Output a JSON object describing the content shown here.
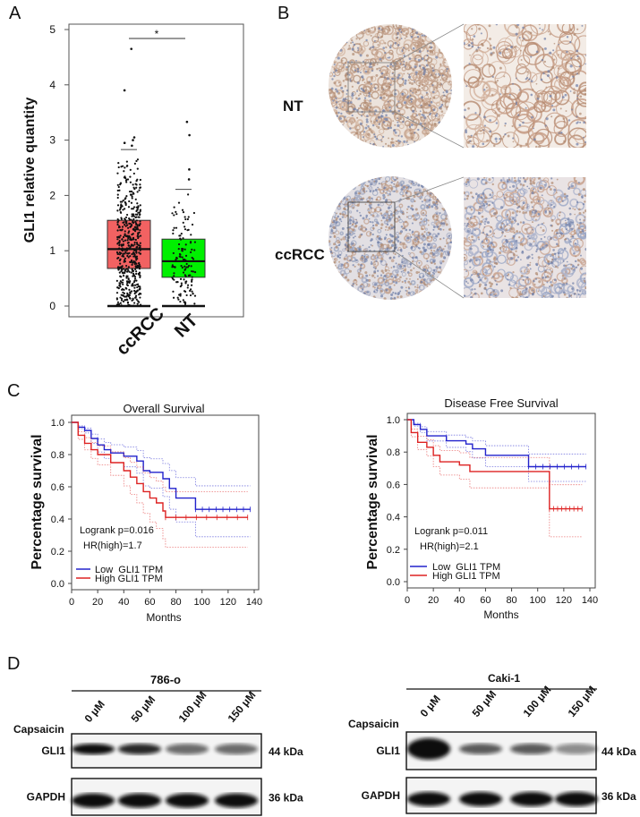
{
  "panel_labels": {
    "a": "A",
    "b": "B",
    "c": "C",
    "d": "D"
  },
  "chart_data": [
    {
      "type": "box",
      "panel": "A",
      "ylabel": "GLI1 relative quantity",
      "ylim": [
        0,
        5
      ],
      "yticks": [
        "0",
        "1",
        "2",
        "3",
        "4",
        "5"
      ],
      "categories": [
        "ccRCC",
        "NT"
      ],
      "colors": [
        "#f26262",
        "#00f000"
      ],
      "boxes": [
        {
          "name": "ccRCC",
          "min": 0,
          "q1": 0.68,
          "median": 1.03,
          "q3": 1.55,
          "max": 2.83,
          "outliers": [
            2.9,
            2.95,
            3.0,
            3.05,
            3.9,
            4.65
          ]
        },
        {
          "name": "NT",
          "min": 0,
          "q1": 0.52,
          "median": 0.81,
          "q3": 1.21,
          "max": 2.11,
          "outliers": [
            2.29,
            2.47,
            3.09,
            3.33
          ]
        }
      ],
      "significance": "*"
    },
    {
      "type": "line",
      "panel": "C",
      "title": "Overall Survival",
      "xlabel": "Months",
      "ylabel": "Percentage survival",
      "xlim": [
        0,
        140
      ],
      "ylim": [
        0,
        1
      ],
      "xticks": [
        "0",
        "20",
        "40",
        "60",
        "80",
        "100",
        "120",
        "140"
      ],
      "yticks": [
        "0.0",
        "0.2",
        "0.4",
        "0.6",
        "0.8",
        "1.0"
      ],
      "annotations": [
        "Logrank p=0.016",
        "HR(high)=1.7"
      ],
      "legend": "bottom-left",
      "series": [
        {
          "name": "Low  GLI1 TPM",
          "color": "#2222cc",
          "points": [
            [
              0,
              1
            ],
            [
              5,
              0.97
            ],
            [
              10,
              0.95
            ],
            [
              15,
              0.9
            ],
            [
              20,
              0.86
            ],
            [
              25,
              0.83
            ],
            [
              30,
              0.81
            ],
            [
              40,
              0.79
            ],
            [
              50,
              0.76
            ],
            [
              55,
              0.7
            ],
            [
              60,
              0.69
            ],
            [
              70,
              0.65
            ],
            [
              75,
              0.59
            ],
            [
              80,
              0.53
            ],
            [
              90,
              0.53
            ],
            [
              95,
              0.46
            ],
            [
              137,
              0.46
            ]
          ]
        },
        {
          "name": "High GLI1 TPM",
          "color": "#dd2222",
          "points": [
            [
              0,
              1
            ],
            [
              5,
              0.92
            ],
            [
              10,
              0.87
            ],
            [
              15,
              0.83
            ],
            [
              20,
              0.8
            ],
            [
              30,
              0.75
            ],
            [
              40,
              0.7
            ],
            [
              45,
              0.66
            ],
            [
              50,
              0.62
            ],
            [
              55,
              0.57
            ],
            [
              60,
              0.53
            ],
            [
              65,
              0.5
            ],
            [
              70,
              0.45
            ],
            [
              72,
              0.41
            ],
            [
              135,
              0.41
            ]
          ]
        }
      ]
    },
    {
      "type": "line",
      "panel": "C",
      "title": "Disease Free Survival",
      "xlabel": "Months",
      "ylabel": "Percentage survival",
      "xlim": [
        0,
        140
      ],
      "ylim": [
        0,
        1
      ],
      "xticks": [
        "0",
        "20",
        "40",
        "60",
        "80",
        "100",
        "120",
        "140"
      ],
      "yticks": [
        "0.0",
        "0.2",
        "0.4",
        "0.6",
        "0.8",
        "1.0"
      ],
      "annotations": [
        "Logrank p=0.011",
        "HR(high)=2.1"
      ],
      "legend": "bottom-left",
      "series": [
        {
          "name": "Low  GLI1 TPM",
          "color": "#2222cc",
          "points": [
            [
              0,
              1
            ],
            [
              5,
              0.97
            ],
            [
              10,
              0.94
            ],
            [
              15,
              0.9
            ],
            [
              25,
              0.9
            ],
            [
              30,
              0.87
            ],
            [
              45,
              0.85
            ],
            [
              50,
              0.82
            ],
            [
              60,
              0.78
            ],
            [
              93,
              0.78
            ],
            [
              93,
              0.71
            ],
            [
              137,
              0.71
            ]
          ]
        },
        {
          "name": "High GLI1 TPM",
          "color": "#dd2222",
          "points": [
            [
              0,
              1
            ],
            [
              3,
              0.92
            ],
            [
              8,
              0.86
            ],
            [
              15,
              0.83
            ],
            [
              20,
              0.78
            ],
            [
              25,
              0.74
            ],
            [
              40,
              0.72
            ],
            [
              48,
              0.68
            ],
            [
              109,
              0.68
            ],
            [
              109,
              0.45
            ],
            [
              134,
              0.45
            ]
          ]
        }
      ]
    }
  ],
  "panel_b": {
    "rows": [
      "NT",
      "ccRCC"
    ]
  },
  "panel_d": {
    "treatment_label": "Capsaicin",
    "doses": [
      "0 μM",
      "50 μM",
      "100 μM",
      "150 μM"
    ],
    "blots": [
      {
        "cell_line": "786-o",
        "rows": [
          {
            "protein": "GLI1",
            "size": "44 kDa",
            "intensity": [
              1.0,
              0.85,
              0.45,
              0.45
            ]
          },
          {
            "protein": "GAPDH",
            "size": "36 kDa",
            "intensity": [
              1.0,
              1.0,
              1.0,
              1.0
            ]
          }
        ]
      },
      {
        "cell_line": "Caki-1",
        "rows": [
          {
            "protein": "GLI1",
            "size": "44 kDa",
            "intensity": [
              1.0,
              0.55,
              0.55,
              0.25
            ]
          },
          {
            "protein": "GAPDH",
            "size": "36 kDa",
            "intensity": [
              1.0,
              1.0,
              1.0,
              1.0
            ]
          }
        ]
      }
    ]
  }
}
